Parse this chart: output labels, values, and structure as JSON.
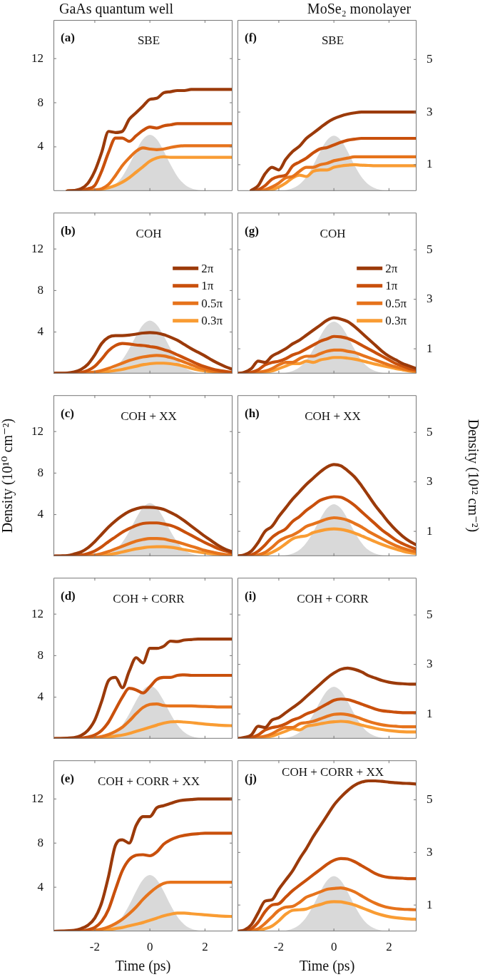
{
  "chart_data": [
    {
      "type": "line",
      "title": "GaAs quantum well",
      "subtitle": "SBE",
      "annotations": [
        "(a)"
      ],
      "x": [
        -3.5,
        -3.25,
        -3,
        -2.75,
        -2.5,
        -2.25,
        -2,
        -1.75,
        -1.5,
        -1.25,
        -1,
        -0.75,
        -0.5,
        -0.25,
        0,
        0.25,
        0.5,
        0.75,
        1,
        1.25,
        1.5,
        1.75,
        2,
        2.25,
        2.5,
        2.75,
        3
      ],
      "xlim": [
        -3.5,
        3
      ],
      "xticks": [
        -2,
        0,
        2
      ],
      "ylim": [
        0,
        15.5
      ],
      "yticks": [
        4,
        8,
        12
      ],
      "tick_labels": "y",
      "series": [
        {
          "type": "area",
          "color": "#d9d9d9",
          "values": [
            0,
            0,
            0,
            0,
            0,
            0,
            0.02,
            0.08,
            0.24,
            0.62,
            1.32,
            2.39,
            3.64,
            4.69,
            5.1,
            4.69,
            3.64,
            2.39,
            1.32,
            0.62,
            0.24,
            0.08,
            0.02,
            0,
            0,
            0,
            0
          ]
        },
        {
          "color": "#9b3a0a",
          "values": [
            null,
            null,
            0,
            0.05,
            0.2,
            0.7,
            1.8,
            3.5,
            5.4,
            5.3,
            5.4,
            6.5,
            7.1,
            7.7,
            8.3,
            8.4,
            8.9,
            9.0,
            9.1,
            9.1,
            9.2,
            9.2,
            9.2,
            9.2,
            9.2,
            9.2,
            9.2
          ]
        },
        {
          "color": "#c9500c",
          "values": [
            null,
            null,
            0,
            0.02,
            0.08,
            0.2,
            0.5,
            1.8,
            3.5,
            4.8,
            4.8,
            4.5,
            5.0,
            5.5,
            5.8,
            5.7,
            5.9,
            6.0,
            6.1,
            6.1,
            6.1,
            6.1,
            6.1,
            6.1,
            6.1,
            6.1,
            6.1
          ]
        },
        {
          "color": "#e6731c",
          "values": [
            null,
            null,
            0,
            0,
            0.02,
            0.05,
            0.1,
            0.2,
            0.6,
            1.4,
            2.3,
            3.0,
            3.6,
            3.9,
            3.8,
            3.75,
            3.8,
            3.95,
            4.05,
            4.1,
            4.1,
            4.1,
            4.1,
            4.1,
            4.1,
            4.1,
            4.1
          ]
        },
        {
          "color": "#f99c33",
          "values": [
            null,
            null,
            0,
            0,
            0,
            0.02,
            0.05,
            0.15,
            0.3,
            0.5,
            0.8,
            1.2,
            1.7,
            2.2,
            2.7,
            3.0,
            3.1,
            3.05,
            3.05,
            3.05,
            3.05,
            3.05,
            3.05,
            3.05,
            3.05,
            3.05,
            3.05
          ]
        }
      ]
    },
    {
      "type": "line",
      "subtitle": "COH",
      "annotations": [
        "(b)"
      ],
      "legend": "right",
      "x": [
        -3.5,
        -3.25,
        -3,
        -2.75,
        -2.5,
        -2.25,
        -2,
        -1.75,
        -1.5,
        -1.25,
        -1,
        -0.75,
        -0.5,
        -0.25,
        0,
        0.25,
        0.5,
        0.75,
        1,
        1.25,
        1.5,
        1.75,
        2,
        2.25,
        2.5,
        2.75,
        3
      ],
      "xlim": [
        -3.5,
        3
      ],
      "xticks": [
        -2,
        0,
        2
      ],
      "ylim": [
        0,
        15.5
      ],
      "yticks": [
        4,
        8,
        12
      ],
      "tick_labels": "y",
      "series": [
        {
          "type": "area",
          "color": "#d9d9d9",
          "values": [
            0,
            0,
            0,
            0,
            0,
            0,
            0.02,
            0.08,
            0.24,
            0.62,
            1.32,
            2.39,
            3.64,
            4.69,
            5.1,
            4.69,
            3.64,
            2.39,
            1.32,
            0.62,
            0.24,
            0.08,
            0.02,
            0,
            0,
            0,
            0
          ]
        },
        {
          "name": "2π",
          "color": "#9b3a0a",
          "values": [
            0.02,
            0.03,
            0.05,
            0.15,
            0.4,
            0.9,
            1.8,
            2.9,
            3.5,
            3.65,
            3.65,
            3.7,
            3.8,
            3.9,
            3.95,
            3.9,
            3.75,
            3.5,
            3.2,
            2.8,
            2.4,
            2.05,
            1.7,
            1.3,
            0.95,
            0.65,
            0.4
          ]
        },
        {
          "name": "1π",
          "color": "#c9500c",
          "values": [
            0,
            0,
            0.02,
            0.05,
            0.1,
            0.3,
            0.7,
            1.4,
            2.2,
            2.7,
            2.9,
            2.85,
            2.75,
            2.7,
            2.6,
            2.5,
            2.3,
            2.1,
            1.8,
            1.5,
            1.2,
            0.9,
            0.65,
            0.45,
            0.3,
            0.2,
            0.1
          ]
        },
        {
          "name": "0.5π",
          "color": "#e6731c",
          "values": [
            0,
            0,
            0,
            0.02,
            0.05,
            0.1,
            0.15,
            0.3,
            0.5,
            0.75,
            1.0,
            1.25,
            1.45,
            1.6,
            1.7,
            1.75,
            1.7,
            1.55,
            1.35,
            1.1,
            0.85,
            0.6,
            0.4,
            0.25,
            0.15,
            0.1,
            0.05
          ]
        },
        {
          "name": "0.3π",
          "color": "#f99c33",
          "values": [
            null,
            null,
            null,
            null,
            0.02,
            0.05,
            0.1,
            0.15,
            0.2,
            0.3,
            0.4,
            0.55,
            0.7,
            0.85,
            0.95,
            1.0,
            1.0,
            0.95,
            0.85,
            0.7,
            0.5,
            0.35,
            0.25,
            0.15,
            0.1,
            0.07,
            0.05
          ]
        }
      ]
    },
    {
      "type": "line",
      "subtitle": "COH + XX",
      "annotations": [
        "(c)"
      ],
      "ylabel": "Density (10¹⁰ cm⁻²)",
      "x": [
        -3.5,
        -3.25,
        -3,
        -2.75,
        -2.5,
        -2.25,
        -2,
        -1.75,
        -1.5,
        -1.25,
        -1,
        -0.75,
        -0.5,
        -0.25,
        0,
        0.25,
        0.5,
        0.75,
        1,
        1.25,
        1.5,
        1.75,
        2,
        2.25,
        2.5,
        2.75,
        3
      ],
      "xlim": [
        -3.5,
        3
      ],
      "xticks": [
        -2,
        0,
        2
      ],
      "ylim": [
        0,
        15.5
      ],
      "yticks": [
        4,
        8,
        12
      ],
      "tick_labels": "y",
      "series": [
        {
          "type": "area",
          "color": "#d9d9d9",
          "values": [
            0,
            0,
            0,
            0,
            0,
            0,
            0.02,
            0.08,
            0.24,
            0.62,
            1.32,
            2.39,
            3.64,
            4.69,
            5.1,
            4.69,
            3.64,
            2.39,
            1.32,
            0.62,
            0.24,
            0.08,
            0.02,
            0,
            0,
            0,
            0
          ]
        },
        {
          "color": "#9b3a0a",
          "values": [
            0,
            0.02,
            0.05,
            0.2,
            0.4,
            0.8,
            1.4,
            2.1,
            2.8,
            3.4,
            3.9,
            4.3,
            4.55,
            4.7,
            4.7,
            4.65,
            4.5,
            4.2,
            3.85,
            3.4,
            2.9,
            2.4,
            1.9,
            1.45,
            1.0,
            0.65,
            0.4
          ]
        },
        {
          "color": "#c9500c",
          "values": [
            0,
            0,
            0,
            0.05,
            0.1,
            0.25,
            0.5,
            0.9,
            1.4,
            1.85,
            2.3,
            2.65,
            2.95,
            3.15,
            3.2,
            3.2,
            3.1,
            2.95,
            2.7,
            2.35,
            2.0,
            1.65,
            1.3,
            1.0,
            0.7,
            0.5,
            0.3
          ]
        },
        {
          "color": "#e6731c",
          "values": [
            null,
            null,
            0,
            0,
            0.02,
            0.05,
            0.1,
            0.25,
            0.45,
            0.7,
            0.95,
            1.2,
            1.45,
            1.6,
            1.7,
            1.7,
            1.65,
            1.5,
            1.35,
            1.15,
            0.95,
            0.75,
            0.55,
            0.4,
            0.25,
            0.15,
            0.1
          ]
        },
        {
          "color": "#f99c33",
          "values": [
            null,
            null,
            null,
            0,
            0,
            0.02,
            0.05,
            0.1,
            0.15,
            0.25,
            0.4,
            0.55,
            0.7,
            0.8,
            0.88,
            0.9,
            0.9,
            0.85,
            0.75,
            0.62,
            0.5,
            0.4,
            0.3,
            0.22,
            0.15,
            0.1,
            0.05
          ]
        }
      ]
    },
    {
      "type": "line",
      "subtitle": "COH + CORR",
      "annotations": [
        "(d)"
      ],
      "x": [
        -3.5,
        -3.25,
        -3,
        -2.75,
        -2.5,
        -2.25,
        -2,
        -1.75,
        -1.5,
        -1.25,
        -1,
        -0.75,
        -0.5,
        -0.25,
        0,
        0.25,
        0.5,
        0.75,
        1,
        1.25,
        1.5,
        1.75,
        2,
        2.25,
        2.5,
        2.75,
        3
      ],
      "xlim": [
        -3.5,
        3
      ],
      "xticks": [
        -2,
        0,
        2
      ],
      "ylim": [
        0,
        15.5
      ],
      "yticks": [
        4,
        8,
        12
      ],
      "tick_labels": "y",
      "series": [
        {
          "type": "area",
          "color": "#d9d9d9",
          "values": [
            0,
            0,
            0,
            0,
            0,
            0,
            0.02,
            0.08,
            0.24,
            0.62,
            1.32,
            2.39,
            3.64,
            4.69,
            5.1,
            4.69,
            3.64,
            2.39,
            1.32,
            0.62,
            0.24,
            0.08,
            0.02,
            0,
            0,
            0,
            0
          ]
        },
        {
          "color": "#9b3a0a",
          "values": [
            0,
            0.02,
            0.05,
            0.1,
            0.3,
            0.8,
            1.8,
            3.6,
            5.6,
            5.9,
            4.9,
            6.5,
            7.8,
            7.3,
            8.7,
            8.7,
            8.9,
            9.4,
            9.35,
            9.5,
            9.55,
            9.6,
            9.6,
            9.6,
            9.6,
            9.6,
            9.6
          ]
        },
        {
          "color": "#c9500c",
          "values": [
            0,
            0,
            0.02,
            0.03,
            0.05,
            0.15,
            0.35,
            0.8,
            1.6,
            2.8,
            4.0,
            4.85,
            4.7,
            4.4,
            5.0,
            5.7,
            5.9,
            5.9,
            6.1,
            6.15,
            6.1,
            6.1,
            6.1,
            6.1,
            6.1,
            6.1,
            6.1
          ]
        },
        {
          "color": "#e6731c",
          "values": [
            0,
            0,
            0,
            0.02,
            0.03,
            0.05,
            0.1,
            0.2,
            0.4,
            0.7,
            1.1,
            1.7,
            2.4,
            3.0,
            3.3,
            3.35,
            3.2,
            3.15,
            3.15,
            3.15,
            3.15,
            3.12,
            3.1,
            3.08,
            3.05,
            3.05,
            3.05
          ]
        },
        {
          "color": "#f99c33",
          "values": [
            null,
            null,
            null,
            0,
            0,
            0.02,
            0.03,
            0.08,
            0.15,
            0.25,
            0.35,
            0.5,
            0.7,
            0.9,
            1.1,
            1.3,
            1.5,
            1.62,
            1.65,
            1.6,
            1.55,
            1.47,
            1.4,
            1.35,
            1.3,
            1.27,
            1.25
          ]
        }
      ]
    },
    {
      "type": "line",
      "subtitle": "COH + CORR + XX",
      "annotations": [
        "(e)"
      ],
      "xlabel": "Time (ps)",
      "x": [
        -3.5,
        -3.25,
        -3,
        -2.75,
        -2.5,
        -2.25,
        -2,
        -1.75,
        -1.5,
        -1.25,
        -1,
        -0.75,
        -0.5,
        -0.25,
        0,
        0.25,
        0.5,
        0.75,
        1,
        1.25,
        1.5,
        1.75,
        2,
        2.25,
        2.5,
        2.75,
        3
      ],
      "xlim": [
        -3.5,
        3
      ],
      "xticks": [
        -2,
        0,
        2
      ],
      "ylim": [
        0,
        15.5
      ],
      "yticks": [
        4,
        8,
        12
      ],
      "series": [
        {
          "type": "area",
          "color": "#d9d9d9",
          "values": [
            0,
            0,
            0,
            0,
            0,
            0,
            0.02,
            0.08,
            0.24,
            0.62,
            1.32,
            2.39,
            3.64,
            4.69,
            5.1,
            4.69,
            3.64,
            2.39,
            1.32,
            0.62,
            0.24,
            0.08,
            0.02,
            0,
            0,
            0,
            0
          ]
        },
        {
          "color": "#9b3a0a",
          "values": [
            0,
            0.02,
            0.05,
            0.1,
            0.25,
            0.55,
            1.2,
            2.6,
            5.0,
            7.8,
            8.3,
            8.0,
            9.6,
            10.4,
            10.4,
            11.2,
            11.4,
            11.6,
            11.8,
            11.9,
            11.95,
            12,
            12,
            12,
            12,
            12,
            12
          ]
        },
        {
          "color": "#c9500c",
          "values": [
            0,
            0,
            0.02,
            0.03,
            0.05,
            0.15,
            0.35,
            0.9,
            2.0,
            3.8,
            5.5,
            6.5,
            6.9,
            6.95,
            6.85,
            7.2,
            7.9,
            8.3,
            8.55,
            8.7,
            8.8,
            8.85,
            8.9,
            8.9,
            8.9,
            8.9,
            8.9
          ]
        },
        {
          "color": "#e6731c",
          "values": [
            null,
            null,
            0,
            0.02,
            0.03,
            0.05,
            0.1,
            0.2,
            0.4,
            0.7,
            1.1,
            1.6,
            2.2,
            2.9,
            3.5,
            4.0,
            4.35,
            4.45,
            4.45,
            4.45,
            4.45,
            4.45,
            4.45,
            4.45,
            4.45,
            4.45,
            4.45
          ]
        },
        {
          "color": "#f99c33",
          "values": [
            null,
            null,
            null,
            null,
            0.02,
            0.03,
            0.05,
            0.1,
            0.15,
            0.25,
            0.35,
            0.5,
            0.65,
            0.8,
            1.0,
            1.2,
            1.4,
            1.55,
            1.65,
            1.65,
            1.6,
            1.55,
            1.5,
            1.45,
            1.4,
            1.37,
            1.35
          ]
        }
      ]
    },
    {
      "type": "line",
      "title": "MoSe₂ monolayer",
      "subtitle": "SBE",
      "annotations": [
        "(f)"
      ],
      "x": [
        -3.5,
        -3.25,
        -3,
        -2.75,
        -2.5,
        -2.25,
        -2,
        -1.75,
        -1.5,
        -1.25,
        -1,
        -0.75,
        -0.5,
        -0.25,
        0,
        0.25,
        0.5,
        0.75,
        1,
        1.25,
        1.5,
        1.75,
        2,
        2.25,
        2.5,
        2.75,
        3
      ],
      "xlim": [
        -3.5,
        3
      ],
      "xticks": [
        -2,
        0,
        2
      ],
      "y2lim": [
        0,
        6.5
      ],
      "y2ticks": [
        1,
        3,
        5
      ],
      "tick_labels": "y",
      "series": [
        {
          "type": "area",
          "axis": "y2",
          "color": "#d9d9d9",
          "values": [
            0,
            0,
            0,
            0,
            0,
            0,
            0.01,
            0.03,
            0.1,
            0.25,
            0.54,
            0.98,
            1.5,
            1.93,
            2.1,
            1.93,
            1.5,
            0.98,
            0.54,
            0.25,
            0.1,
            0.03,
            0.01,
            0,
            0,
            0,
            0
          ]
        },
        {
          "axis": "y2",
          "color": "#9b3a0a",
          "values": [
            null,
            null,
            0.02,
            0.2,
            0.65,
            0.9,
            0.8,
            1.2,
            1.5,
            1.7,
            2.0,
            2.2,
            2.4,
            2.6,
            2.75,
            2.85,
            2.92,
            2.97,
            3.0,
            3.0,
            3.0,
            3.0,
            3.0,
            3.0,
            3.0,
            3.0,
            3.0
          ]
        },
        {
          "axis": "y2",
          "color": "#c9500c",
          "values": [
            null,
            null,
            0.02,
            0.05,
            0.2,
            0.45,
            0.55,
            0.6,
            0.95,
            1.1,
            1.25,
            1.45,
            1.6,
            1.65,
            1.75,
            1.85,
            1.93,
            1.97,
            2.0,
            2.0,
            2.0,
            2.0,
            2.0,
            2.0,
            2.0,
            2.0,
            2.0
          ]
        },
        {
          "axis": "y2",
          "color": "#e6731c",
          "values": [
            null,
            null,
            0,
            0.02,
            0.05,
            0.15,
            0.3,
            0.5,
            0.55,
            0.75,
            0.9,
            0.9,
            1.0,
            1.05,
            1.15,
            1.2,
            1.25,
            1.3,
            1.3,
            1.3,
            1.3,
            1.3,
            1.3,
            1.3,
            1.3,
            1.3,
            1.3
          ]
        },
        {
          "axis": "y2",
          "color": "#f99c33",
          "values": [
            null,
            null,
            0,
            0,
            0.02,
            0.05,
            0.15,
            0.3,
            0.5,
            0.6,
            0.55,
            0.75,
            0.8,
            0.8,
            0.9,
            0.95,
            0.98,
            1.0,
            0.98,
            0.97,
            0.96,
            0.96,
            0.96,
            0.96,
            0.96,
            0.96,
            0.96
          ]
        }
      ]
    },
    {
      "type": "line",
      "subtitle": "COH",
      "annotations": [
        "(g)"
      ],
      "legend": "right",
      "x": [
        -3.5,
        -3.25,
        -3,
        -2.75,
        -2.5,
        -2.25,
        -2,
        -1.75,
        -1.5,
        -1.25,
        -1,
        -0.75,
        -0.5,
        -0.25,
        0,
        0.25,
        0.5,
        0.75,
        1,
        1.25,
        1.5,
        1.75,
        2,
        2.25,
        2.5,
        2.75,
        3
      ],
      "xlim": [
        -3.5,
        3
      ],
      "xticks": [
        -2,
        0,
        2
      ],
      "y2lim": [
        0,
        6.5
      ],
      "y2ticks": [
        1,
        3,
        5
      ],
      "tick_labels": "y",
      "series": [
        {
          "type": "area",
          "axis": "y2",
          "color": "#d9d9d9",
          "values": [
            0,
            0,
            0,
            0,
            0,
            0,
            0.01,
            0.03,
            0.1,
            0.25,
            0.54,
            0.98,
            1.5,
            1.93,
            2.1,
            1.93,
            1.5,
            0.98,
            0.54,
            0.25,
            0.1,
            0.03,
            0.01,
            0,
            0,
            0,
            0
          ]
        },
        {
          "name": "2π",
          "axis": "y2",
          "color": "#9b3a0a",
          "values": [
            0,
            0.05,
            0.2,
            0.5,
            0.45,
            0.7,
            0.85,
            1.0,
            1.2,
            1.35,
            1.55,
            1.75,
            1.95,
            2.15,
            2.25,
            2.2,
            2.1,
            1.9,
            1.65,
            1.4,
            1.15,
            0.9,
            0.7,
            0.55,
            0.4,
            0.3,
            0.2
          ]
        },
        {
          "name": "1π",
          "axis": "y2",
          "color": "#c9500c",
          "values": [
            0,
            0.02,
            0.05,
            0.15,
            0.35,
            0.45,
            0.5,
            0.6,
            0.75,
            0.85,
            1.0,
            1.15,
            1.3,
            1.4,
            1.5,
            1.48,
            1.42,
            1.3,
            1.15,
            1.0,
            0.85,
            0.7,
            0.55,
            0.4,
            0.3,
            0.2,
            0.15
          ]
        },
        {
          "name": "0.5π",
          "axis": "y2",
          "color": "#e6731c",
          "values": [
            0,
            0,
            0.02,
            0.05,
            0.1,
            0.2,
            0.35,
            0.45,
            0.45,
            0.6,
            0.7,
            0.7,
            0.8,
            0.9,
            0.95,
            0.95,
            0.9,
            0.85,
            0.75,
            0.65,
            0.55,
            0.45,
            0.35,
            0.27,
            0.2,
            0.14,
            0.1
          ]
        },
        {
          "name": "0.3π",
          "axis": "y2",
          "color": "#f99c33",
          "values": [
            0,
            0,
            0,
            0.02,
            0.05,
            0.1,
            0.2,
            0.3,
            0.4,
            0.4,
            0.5,
            0.45,
            0.55,
            0.6,
            0.65,
            0.65,
            0.62,
            0.58,
            0.52,
            0.45,
            0.38,
            0.32,
            0.26,
            0.2,
            0.15,
            0.1,
            0.07
          ]
        }
      ]
    },
    {
      "type": "line",
      "subtitle": "COH + XX",
      "annotations": [
        "(h)"
      ],
      "y2label": "Density (10¹² cm⁻²)",
      "x": [
        -3.5,
        -3.25,
        -3,
        -2.75,
        -2.5,
        -2.25,
        -2,
        -1.75,
        -1.5,
        -1.25,
        -1,
        -0.75,
        -0.5,
        -0.25,
        0,
        0.25,
        0.5,
        0.75,
        1,
        1.25,
        1.5,
        1.75,
        2,
        2.25,
        2.5,
        2.75,
        3
      ],
      "xlim": [
        -3.5,
        3
      ],
      "xticks": [
        -2,
        0,
        2
      ],
      "y2lim": [
        0,
        6.5
      ],
      "y2ticks": [
        1,
        3,
        5
      ],
      "tick_labels": "y",
      "series": [
        {
          "type": "area",
          "axis": "y2",
          "color": "#d9d9d9",
          "values": [
            0,
            0,
            0,
            0,
            0,
            0,
            0.01,
            0.03,
            0.1,
            0.25,
            0.54,
            0.98,
            1.5,
            1.93,
            2.1,
            1.93,
            1.5,
            0.98,
            0.54,
            0.25,
            0.1,
            0.03,
            0.01,
            0,
            0,
            0,
            0
          ]
        },
        {
          "axis": "y2",
          "color": "#9b3a0a",
          "values": [
            0,
            0.05,
            0.2,
            0.55,
            1.0,
            1.2,
            1.6,
            1.95,
            2.3,
            2.6,
            2.9,
            3.15,
            3.4,
            3.6,
            3.7,
            3.65,
            3.45,
            3.2,
            2.85,
            2.45,
            2.05,
            1.7,
            1.35,
            1.05,
            0.8,
            0.6,
            0.45
          ]
        },
        {
          "axis": "y2",
          "color": "#c9500c",
          "values": [
            0,
            0.02,
            0.05,
            0.2,
            0.45,
            0.75,
            0.95,
            1.1,
            1.4,
            1.6,
            1.85,
            2.05,
            2.25,
            2.35,
            2.4,
            2.38,
            2.25,
            2.05,
            1.8,
            1.55,
            1.3,
            1.05,
            0.85,
            0.65,
            0.5,
            0.38,
            0.28
          ]
        },
        {
          "axis": "y2",
          "color": "#e6731c",
          "values": [
            0,
            0,
            0.02,
            0.05,
            0.15,
            0.35,
            0.6,
            0.75,
            0.85,
            1.0,
            1.2,
            1.3,
            1.4,
            1.5,
            1.55,
            1.52,
            1.45,
            1.32,
            1.18,
            1.0,
            0.85,
            0.7,
            0.55,
            0.42,
            0.32,
            0.23,
            0.17
          ]
        },
        {
          "axis": "y2",
          "color": "#f99c33",
          "values": [
            0,
            0,
            0,
            0.02,
            0.05,
            0.15,
            0.3,
            0.5,
            0.7,
            0.78,
            0.82,
            0.95,
            1.02,
            1.08,
            1.1,
            1.08,
            1.02,
            0.93,
            0.82,
            0.7,
            0.58,
            0.47,
            0.37,
            0.28,
            0.2,
            0.14,
            0.1
          ]
        }
      ]
    },
    {
      "type": "line",
      "subtitle": "COH + CORR",
      "annotations": [
        "(i)"
      ],
      "x": [
        -3.5,
        -3.25,
        -3,
        -2.75,
        -2.5,
        -2.25,
        -2,
        -1.75,
        -1.5,
        -1.25,
        -1,
        -0.75,
        -0.5,
        -0.25,
        0,
        0.25,
        0.5,
        0.75,
        1,
        1.25,
        1.5,
        1.75,
        2,
        2.25,
        2.5,
        2.75,
        3
      ],
      "xlim": [
        -3.5,
        3
      ],
      "xticks": [
        -2,
        0,
        2
      ],
      "y2lim": [
        0,
        6.5
      ],
      "y2ticks": [
        1,
        3,
        5
      ],
      "tick_labels": "y",
      "series": [
        {
          "type": "area",
          "axis": "y2",
          "color": "#d9d9d9",
          "values": [
            0,
            0,
            0,
            0,
            0,
            0,
            0.01,
            0.03,
            0.1,
            0.25,
            0.54,
            0.98,
            1.5,
            1.93,
            2.1,
            1.93,
            1.5,
            0.98,
            0.54,
            0.25,
            0.1,
            0.03,
            0.01,
            0,
            0,
            0,
            0
          ]
        },
        {
          "axis": "y2",
          "color": "#9b3a0a",
          "values": [
            0,
            0.05,
            0.15,
            0.5,
            0.45,
            0.75,
            0.85,
            1.05,
            1.25,
            1.45,
            1.7,
            1.95,
            2.2,
            2.45,
            2.65,
            2.8,
            2.85,
            2.8,
            2.7,
            2.55,
            2.45,
            2.35,
            2.28,
            2.24,
            2.22,
            2.2,
            2.2
          ]
        },
        {
          "axis": "y2",
          "color": "#c9500c",
          "values": [
            0,
            0.02,
            0.05,
            0.15,
            0.35,
            0.45,
            0.5,
            0.6,
            0.75,
            0.85,
            1.0,
            1.1,
            1.25,
            1.4,
            1.55,
            1.6,
            1.58,
            1.5,
            1.4,
            1.3,
            1.2,
            1.13,
            1.1,
            1.07,
            1.05,
            1.05,
            1.05
          ]
        },
        {
          "axis": "y2",
          "color": "#e6731c",
          "values": [
            0,
            0,
            0.02,
            0.05,
            0.1,
            0.2,
            0.35,
            0.45,
            0.45,
            0.6,
            0.65,
            0.7,
            0.8,
            0.9,
            0.98,
            1.0,
            0.97,
            0.9,
            0.8,
            0.7,
            0.62,
            0.56,
            0.52,
            0.5,
            0.48,
            0.48,
            0.48
          ]
        },
        {
          "axis": "y2",
          "color": "#f99c33",
          "values": [
            null,
            null,
            0,
            0.02,
            0.05,
            0.1,
            0.2,
            0.3,
            0.4,
            0.35,
            0.5,
            0.55,
            0.6,
            0.65,
            0.68,
            0.7,
            0.68,
            0.62,
            0.55,
            0.48,
            0.42,
            0.37,
            0.33,
            0.3,
            0.28,
            0.27,
            0.27
          ]
        }
      ]
    },
    {
      "type": "line",
      "subtitle": "COH + CORR + XX",
      "annotations": [
        "(j)"
      ],
      "xlabel": "Time (ps)",
      "x": [
        -3.5,
        -3.25,
        -3,
        -2.75,
        -2.5,
        -2.25,
        -2,
        -1.75,
        -1.5,
        -1.25,
        -1,
        -0.75,
        -0.5,
        -0.25,
        0,
        0.25,
        0.5,
        0.75,
        1,
        1.25,
        1.5,
        1.75,
        2,
        2.25,
        2.5,
        2.75,
        3
      ],
      "xlim": [
        -3.5,
        3
      ],
      "xticks": [
        -2,
        0,
        2
      ],
      "y2lim": [
        0,
        6.5
      ],
      "y2ticks": [
        1,
        3,
        5
      ],
      "series": [
        {
          "type": "area",
          "axis": "y2",
          "color": "#d9d9d9",
          "values": [
            0,
            0,
            0,
            0,
            0,
            0,
            0.01,
            0.03,
            0.1,
            0.25,
            0.54,
            0.98,
            1.5,
            1.93,
            2.1,
            1.93,
            1.5,
            0.98,
            0.54,
            0.25,
            0.1,
            0.03,
            0.01,
            0,
            0,
            0,
            0
          ]
        },
        {
          "axis": "y2",
          "color": "#9b3a0a",
          "values": [
            0,
            0.05,
            0.25,
            0.7,
            1.15,
            1.2,
            1.6,
            1.95,
            2.3,
            2.75,
            3.15,
            3.6,
            4.0,
            4.4,
            4.8,
            5.1,
            5.35,
            5.55,
            5.67,
            5.72,
            5.72,
            5.7,
            5.67,
            5.65,
            5.63,
            5.62,
            5.6
          ]
        },
        {
          "axis": "y2",
          "color": "#c9500c",
          "values": [
            0,
            0.02,
            0.1,
            0.35,
            0.75,
            1.0,
            1.05,
            1.3,
            1.55,
            1.75,
            1.95,
            2.15,
            2.35,
            2.55,
            2.7,
            2.77,
            2.75,
            2.65,
            2.5,
            2.35,
            2.2,
            2.1,
            2.05,
            2.03,
            2.02,
            2.0,
            2.0
          ]
        },
        {
          "axis": "y2",
          "color": "#e6731c",
          "values": [
            0,
            0,
            0.03,
            0.1,
            0.3,
            0.55,
            0.8,
            0.92,
            0.95,
            1.1,
            1.3,
            1.4,
            1.5,
            1.6,
            1.63,
            1.65,
            1.6,
            1.5,
            1.35,
            1.2,
            1.07,
            0.97,
            0.9,
            0.86,
            0.84,
            0.83,
            0.82
          ]
        },
        {
          "axis": "y2",
          "color": "#f99c33",
          "values": [
            0,
            0,
            0,
            0.03,
            0.1,
            0.2,
            0.4,
            0.65,
            0.8,
            0.82,
            0.85,
            0.95,
            1.02,
            1.1,
            1.13,
            1.12,
            1.07,
            1.0,
            0.9,
            0.8,
            0.7,
            0.62,
            0.56,
            0.52,
            0.49,
            0.47,
            0.46
          ]
        }
      ]
    }
  ]
}
